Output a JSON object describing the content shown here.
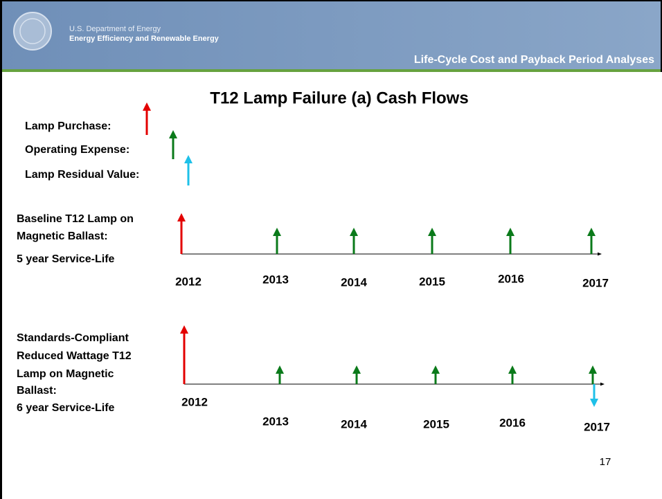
{
  "header": {
    "agency": "U.S. Department of Energy",
    "office": "Energy Efficiency and Renewable Energy",
    "section": "Life-Cycle Cost and Payback Period Analyses"
  },
  "title": "T12 Lamp Failure (a) Cash Flows",
  "legend": [
    "Lamp Purchase:",
    "Operating Expense:",
    "Lamp Residual Value:"
  ],
  "timelines": [
    {
      "label": [
        "Baseline T12 Lamp on",
        "Magnetic Ballast:"
      ],
      "service_life": "5 year Service-Life",
      "years": [
        "2012",
        "2013",
        "2014",
        "2015",
        "2016",
        "2017"
      ]
    },
    {
      "label": [
        "Standards-Compliant",
        "Reduced Wattage T12",
        "Lamp on Magnetic",
        "Ballast:"
      ],
      "service_life": "6 year Service-Life",
      "years": [
        "2012",
        "2013",
        "2014",
        "2015",
        "2016",
        "2017"
      ]
    }
  ],
  "page_number": "17"
}
